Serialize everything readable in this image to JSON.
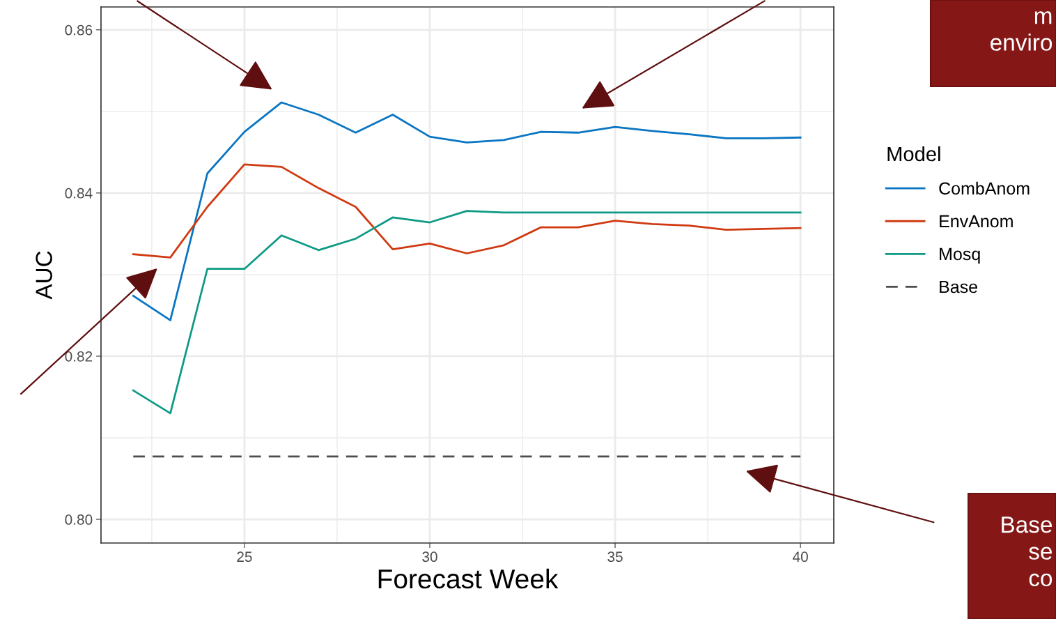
{
  "chart_data": {
    "type": "line",
    "xlabel": "Forecast Week",
    "ylabel": "AUC",
    "legend_title": "Model",
    "x": [
      22,
      23,
      24,
      25,
      26,
      27,
      28,
      29,
      30,
      31,
      32,
      33,
      34,
      35,
      36,
      37,
      38,
      39,
      40
    ],
    "series": [
      {
        "name": "CombAnom",
        "color": "#0a75c2",
        "values": [
          0.8274,
          0.8244,
          0.8424,
          0.8475,
          0.8511,
          0.8496,
          0.8474,
          0.8496,
          0.8469,
          0.8462,
          0.8465,
          0.8475,
          0.8474,
          0.8481,
          0.8476,
          0.8472,
          0.8467,
          0.8467,
          0.8468
        ]
      },
      {
        "name": "EnvAnom",
        "color": "#d03a12",
        "values": [
          0.8325,
          0.8321,
          0.8383,
          0.8435,
          0.8432,
          0.8406,
          0.8383,
          0.8331,
          0.8338,
          0.8326,
          0.8336,
          0.8358,
          0.8358,
          0.8366,
          0.8362,
          0.836,
          0.8355,
          0.8356,
          0.8357
        ]
      },
      {
        "name": "Mosq",
        "color": "#0e9a85",
        "values": [
          0.8158,
          0.813,
          0.8307,
          0.8307,
          0.8348,
          0.833,
          0.8344,
          0.837,
          0.8364,
          0.8378,
          0.8376,
          0.8376,
          0.8376,
          0.8376,
          0.8376,
          0.8376,
          0.8376,
          0.8376,
          0.8376
        ]
      },
      {
        "name": "Base",
        "color": "#4d4d4d",
        "line_style": "dashed",
        "values": [
          0.8077,
          0.8077,
          0.8077,
          0.8077,
          0.8077,
          0.8077,
          0.8077,
          0.8077,
          0.8077,
          0.8077,
          0.8077,
          0.8077,
          0.8077,
          0.8077,
          0.8077,
          0.8077,
          0.8077,
          0.8077,
          0.8077
        ]
      }
    ],
    "xlim": [
      21.13,
      40.9
    ],
    "ylim": [
      0.7971,
      0.8628
    ],
    "xticks": [
      25,
      30,
      35,
      40
    ],
    "yticks": [
      {
        "value": 0.8,
        "label": "0.80"
      },
      {
        "value": 0.82,
        "label": "0.82"
      },
      {
        "value": 0.84,
        "label": "0.84"
      },
      {
        "value": 0.86,
        "label": "0.86"
      }
    ],
    "grid": true,
    "legend": "right",
    "line_style": "solid",
    "annotations": [
      "m\nenviro",
      "Base\nse\nco"
    ]
  }
}
